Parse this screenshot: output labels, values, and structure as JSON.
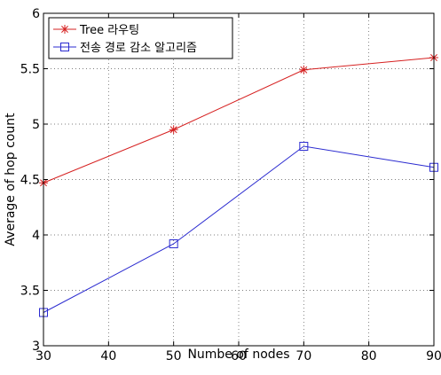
{
  "chart_data": {
    "type": "line",
    "title": "",
    "xlabel": "Numbe of nodes",
    "ylabel": "Average of hop count",
    "xlim": [
      30,
      90
    ],
    "ylim": [
      3,
      6
    ],
    "xticks": [
      30,
      40,
      50,
      60,
      70,
      80,
      90
    ],
    "yticks": [
      3,
      3.5,
      4,
      4.5,
      5,
      5.5,
      6
    ],
    "xtick_labels": [
      "30",
      "40",
      "50",
      "60",
      "70",
      "80",
      "90"
    ],
    "ytick_labels": [
      "3",
      "3.5",
      "4",
      "4.5",
      "5",
      "5.5",
      "6"
    ],
    "grid": true,
    "grid_style": "dotted",
    "legend_position": "top-left",
    "series": [
      {
        "name": "Tree 라우팅",
        "color": "#d62020",
        "marker": "asterisk",
        "x": [
          30,
          50,
          70,
          90
        ],
        "y": [
          4.47,
          4.95,
          5.49,
          5.6
        ]
      },
      {
        "name": "전송 경로 감소 알고리즘",
        "color": "#2b2bd0",
        "marker": "square",
        "x": [
          30,
          50,
          70,
          90
        ],
        "y": [
          3.3,
          3.92,
          4.8,
          4.61
        ]
      }
    ]
  }
}
